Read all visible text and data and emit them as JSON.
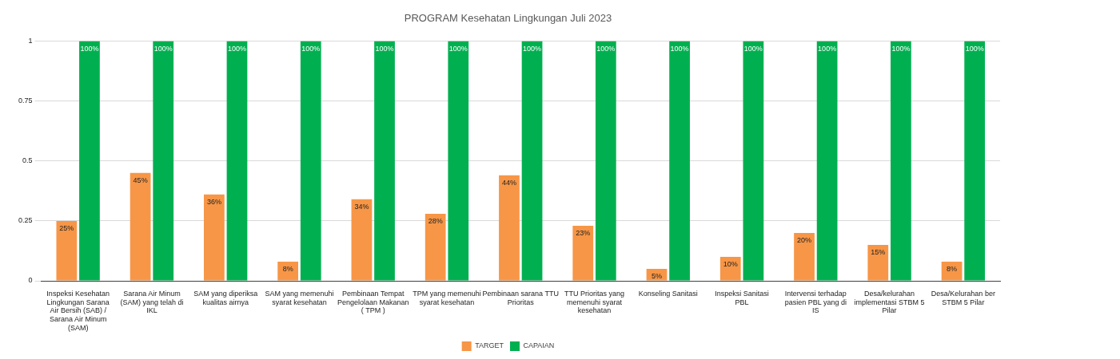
{
  "chart_data": {
    "type": "bar",
    "title": "PROGRAM Kesehatan Lingkungan Juli 2023",
    "categories": [
      "Inspeksi Kesehatan Lingkungan Sarana Air Bersih (SAB) / Sarana Air Minum (SAM)",
      "Sarana Air Minum (SAM) yang telah di IKL",
      "SAM yang diperiksa kualitas airnya",
      "SAM yang memenuhi syarat kesehatan",
      "Pembinaan Tempat Pengelolaan Makanan ( TPM )",
      "TPM yang memenuhi syarat kesehatan",
      "Pembinaan sarana TTU Prioritas",
      "TTU Prioritas yang memenuhi syarat kesehatan",
      "Konseling Sanitasi",
      "Inspeksi Sanitasi PBL",
      "Intervensi terhadap pasien PBL yang di IS",
      "Desa/kelurahan implementasi STBM 5 Pilar",
      "Desa/Kelurahan ber STBM 5 Pilar"
    ],
    "series": [
      {
        "name": "TARGET",
        "color": "#f79646",
        "values": [
          0.25,
          0.45,
          0.36,
          0.08,
          0.34,
          0.28,
          0.44,
          0.23,
          0.05,
          0.1,
          0.2,
          0.15,
          0.08
        ],
        "value_labels": [
          "25%",
          "45%",
          "36%",
          "8%",
          "34%",
          "28%",
          "44%",
          "23%",
          "5%",
          "10%",
          "20%",
          "15%",
          "8%"
        ]
      },
      {
        "name": "CAPAIAN",
        "color": "#00b050",
        "values": [
          1,
          1,
          1,
          1,
          1,
          1,
          1,
          1,
          1,
          1,
          1,
          1,
          1
        ],
        "value_labels": [
          "100%",
          "100%",
          "100%",
          "100%",
          "100%",
          "100%",
          "100%",
          "100%",
          "100%",
          "100%",
          "100%",
          "100%",
          "100%"
        ]
      }
    ],
    "ylim": [
      0,
      1
    ],
    "yticks": [
      0,
      0.25,
      0.5,
      0.75,
      1
    ],
    "grid": "y",
    "legend": "bottom"
  }
}
